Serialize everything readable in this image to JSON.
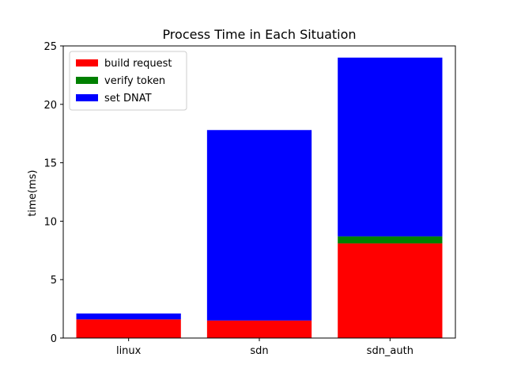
{
  "chart_data": {
    "type": "bar",
    "stacked": true,
    "title": "Process Time in Each Situation",
    "xlabel": "",
    "ylabel": "time(ms)",
    "ylim": [
      0,
      25
    ],
    "yticks": [
      0,
      5,
      10,
      15,
      20,
      25
    ],
    "categories": [
      "linux",
      "sdn",
      "sdn_auth"
    ],
    "series": [
      {
        "name": "build request",
        "color": "#ff0000",
        "values": [
          1.6,
          1.5,
          8.1
        ]
      },
      {
        "name": "verify token",
        "color": "#008000",
        "values": [
          0.0,
          0.0,
          0.6
        ]
      },
      {
        "name": "set DNAT",
        "color": "#0000ff",
        "values": [
          0.5,
          16.3,
          15.3
        ]
      }
    ],
    "legend_position": "top-left",
    "grid": false
  }
}
